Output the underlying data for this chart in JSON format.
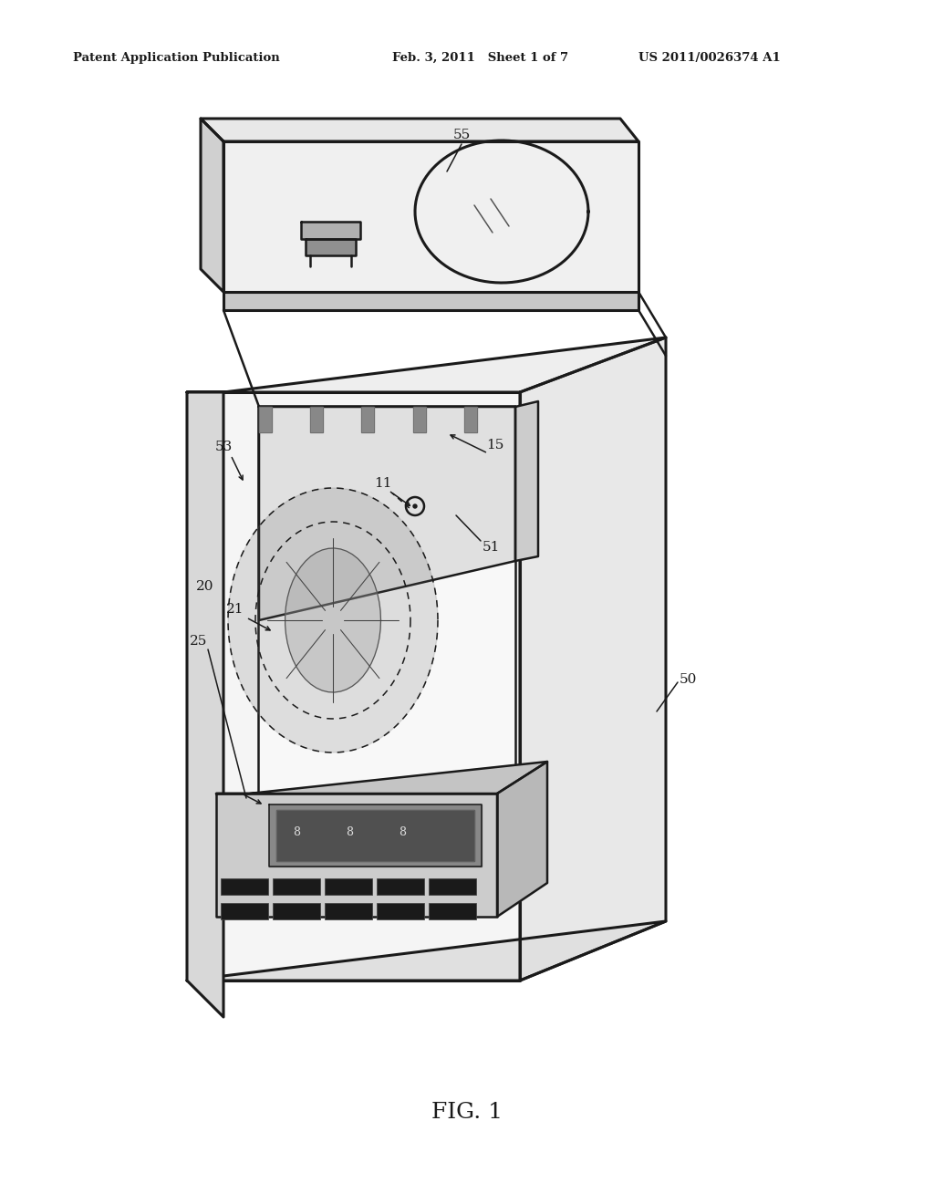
{
  "bg_color": "#ffffff",
  "line_color": "#1a1a1a",
  "header_left": "Patent Application Publication",
  "header_mid": "Feb. 3, 2011   Sheet 1 of 7",
  "header_right": "US 2011/0026374 A1",
  "fig_label": "FIG. 1",
  "lw_main": 1.8,
  "lw_thin": 1.1,
  "lw_thick": 2.2,
  "label_fs": 11,
  "header_fs": 9.5,
  "fig_fs": 18
}
